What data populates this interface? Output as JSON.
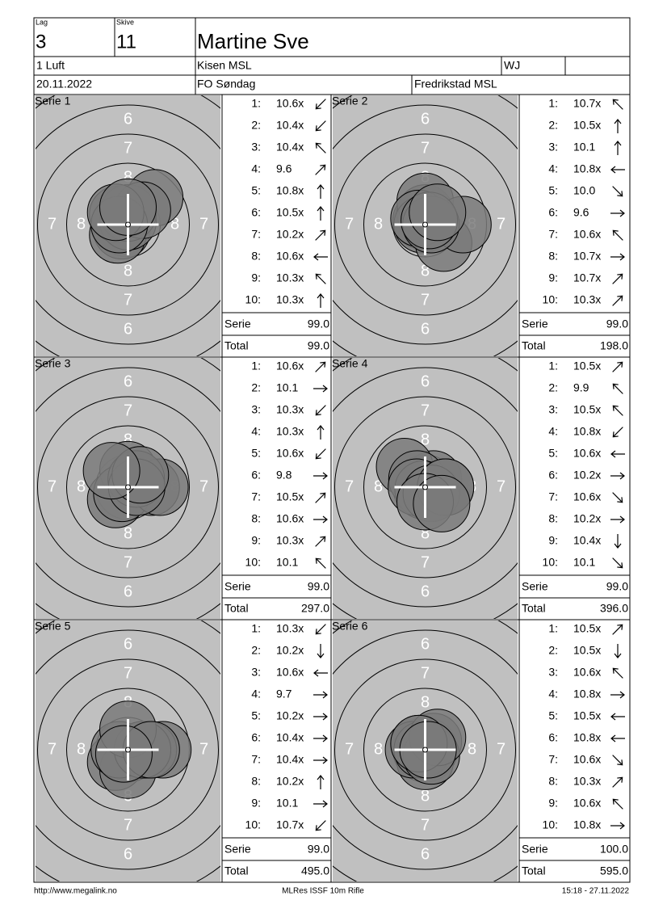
{
  "header": {
    "lag_label": "Lag",
    "lag": "3",
    "skive_label": "Skive",
    "skive": "11",
    "name": "Martine Sve",
    "class": "1 Luft",
    "club": "Kisen MSL",
    "group": "WJ",
    "date": "20.11.2022",
    "event": "FO Søndag",
    "organizer": "Fredrikstad MSL"
  },
  "labels": {
    "serie": "Serie",
    "total": "Total",
    "rings": [
      "6",
      "7",
      "8"
    ]
  },
  "series": [
    {
      "title": "Serie 1",
      "shots": [
        {
          "no": "1:",
          "score": "10.6x"
        },
        {
          "no": "2:",
          "score": "10.4x"
        },
        {
          "no": "3:",
          "score": "10.4x"
        },
        {
          "no": "4:",
          "score": "9.6"
        },
        {
          "no": "5:",
          "score": "10.8x"
        },
        {
          "no": "6:",
          "score": "10.5x"
        },
        {
          "no": "7:",
          "score": "10.2x"
        },
        {
          "no": "8:",
          "score": "10.6x"
        },
        {
          "no": "9:",
          "score": "10.3x"
        },
        {
          "no": "10:",
          "score": "10.3x"
        }
      ],
      "serie": "99.0",
      "total": "99.0"
    },
    {
      "title": "Serie 2",
      "shots": [
        {
          "no": "1:",
          "score": "10.7x"
        },
        {
          "no": "2:",
          "score": "10.5x"
        },
        {
          "no": "3:",
          "score": "10.1"
        },
        {
          "no": "4:",
          "score": "10.8x"
        },
        {
          "no": "5:",
          "score": "10.0"
        },
        {
          "no": "6:",
          "score": "9.6"
        },
        {
          "no": "7:",
          "score": "10.6x"
        },
        {
          "no": "8:",
          "score": "10.7x"
        },
        {
          "no": "9:",
          "score": "10.7x"
        },
        {
          "no": "10:",
          "score": "10.3x"
        }
      ],
      "serie": "99.0",
      "total": "198.0"
    },
    {
      "title": "Serie 3",
      "shots": [
        {
          "no": "1:",
          "score": "10.6x"
        },
        {
          "no": "2:",
          "score": "10.1"
        },
        {
          "no": "3:",
          "score": "10.3x"
        },
        {
          "no": "4:",
          "score": "10.3x"
        },
        {
          "no": "5:",
          "score": "10.6x"
        },
        {
          "no": "6:",
          "score": "9.8"
        },
        {
          "no": "7:",
          "score": "10.5x"
        },
        {
          "no": "8:",
          "score": "10.6x"
        },
        {
          "no": "9:",
          "score": "10.3x"
        },
        {
          "no": "10:",
          "score": "10.1"
        }
      ],
      "serie": "99.0",
      "total": "297.0"
    },
    {
      "title": "Serie 4",
      "shots": [
        {
          "no": "1:",
          "score": "10.5x"
        },
        {
          "no": "2:",
          "score": "9.9"
        },
        {
          "no": "3:",
          "score": "10.5x"
        },
        {
          "no": "4:",
          "score": "10.8x"
        },
        {
          "no": "5:",
          "score": "10.6x"
        },
        {
          "no": "6:",
          "score": "10.2x"
        },
        {
          "no": "7:",
          "score": "10.6x"
        },
        {
          "no": "8:",
          "score": "10.2x"
        },
        {
          "no": "9:",
          "score": "10.4x"
        },
        {
          "no": "10:",
          "score": "10.1"
        }
      ],
      "serie": "99.0",
      "total": "396.0"
    },
    {
      "title": "Serie 5",
      "shots": [
        {
          "no": "1:",
          "score": "10.3x"
        },
        {
          "no": "2:",
          "score": "10.2x"
        },
        {
          "no": "3:",
          "score": "10.6x"
        },
        {
          "no": "4:",
          "score": "9.7"
        },
        {
          "no": "5:",
          "score": "10.2x"
        },
        {
          "no": "6:",
          "score": "10.4x"
        },
        {
          "no": "7:",
          "score": "10.4x"
        },
        {
          "no": "8:",
          "score": "10.2x"
        },
        {
          "no": "9:",
          "score": "10.1"
        },
        {
          "no": "10:",
          "score": "10.7x"
        }
      ],
      "serie": "99.0",
      "total": "495.0"
    },
    {
      "title": "Serie 6",
      "shots": [
        {
          "no": "1:",
          "score": "10.5x"
        },
        {
          "no": "2:",
          "score": "10.5x"
        },
        {
          "no": "3:",
          "score": "10.6x"
        },
        {
          "no": "4:",
          "score": "10.8x"
        },
        {
          "no": "5:",
          "score": "10.5x"
        },
        {
          "no": "6:",
          "score": "10.8x"
        },
        {
          "no": "7:",
          "score": "10.6x"
        },
        {
          "no": "8:",
          "score": "10.3x"
        },
        {
          "no": "9:",
          "score": "10.6x"
        },
        {
          "no": "10:",
          "score": "10.8x"
        }
      ],
      "serie": "100.0",
      "total": "595.0"
    }
  ],
  "footer": {
    "url": "http://www.megalink.no",
    "program": "MLRes ISSF 10m Rifle",
    "timestamp": "15:18 - 27.11.2022"
  }
}
